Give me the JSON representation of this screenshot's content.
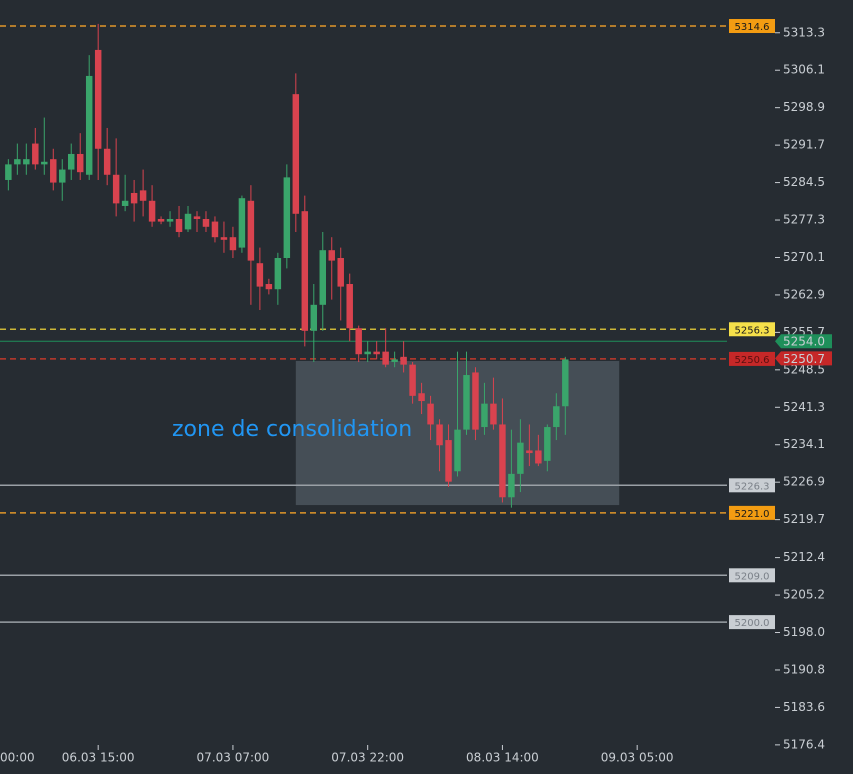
{
  "chart_data": {
    "type": "candlestick",
    "up_color": "#3aa56b",
    "down_color": "#d9434f",
    "xlim": [
      4.07,
      85
    ],
    "ylim": [
      5170.8,
      5319.6
    ],
    "xticks": [
      {
        "value": 0,
        "label": "00:00"
      },
      {
        "value": 15,
        "label": "06.03 15:00"
      },
      {
        "value": 30,
        "label": "07.03 07:00"
      },
      {
        "value": 45,
        "label": "07.03 22:00"
      },
      {
        "value": 60,
        "label": "08.03 14:00"
      },
      {
        "value": 75,
        "label": "09.03 05:00"
      }
    ],
    "yticks": [
      5313.3,
      5306.1,
      5298.9,
      5291.7,
      5284.5,
      5277.3,
      5270.1,
      5262.9,
      5255.7,
      5248.5,
      5241.3,
      5234.1,
      5226.9,
      5219.7,
      5212.4,
      5205.2,
      {
        "value": 5198,
        "label": "5198.0"
      },
      5190.8,
      5183.6,
      5176.4
    ],
    "x": [
      5,
      6,
      7,
      8,
      9,
      10,
      11,
      12,
      13,
      14,
      15,
      16,
      17,
      18,
      19,
      20,
      21,
      22,
      23,
      24,
      25,
      26,
      27,
      28,
      29,
      30,
      31,
      32,
      33,
      34,
      35,
      36,
      37,
      38,
      39,
      40,
      41,
      42,
      43,
      44,
      45,
      46,
      47,
      48,
      49,
      50,
      51,
      52,
      53,
      54,
      55,
      56,
      57,
      58,
      59,
      60,
      61,
      62,
      63,
      64,
      65,
      66,
      67
    ],
    "open": [
      5285,
      5288,
      5288,
      5292,
      5288,
      5289,
      5284.5,
      5287,
      5290,
      5286,
      5310,
      5291,
      5286,
      5280,
      5282.5,
      5283,
      5281,
      5277.5,
      5277,
      5277.5,
      5275.5,
      5278,
      5277.5,
      5277,
      5274,
      5274,
      5272,
      5281,
      5269,
      5265,
      5264,
      5270,
      5301.5,
      5279,
      5256,
      5261,
      5271.5,
      5270,
      5265,
      5256.5,
      5251.5,
      5252,
      5252,
      5250,
      5251,
      5249.5,
      5244,
      5242,
      5238,
      5235,
      5229,
      5237,
      5248,
      5237.5,
      5242,
      5238,
      5224,
      5228.5,
      5233,
      5233,
      5231,
      5237.5,
      5241.5
    ],
    "high": [
      5289,
      5292,
      5292,
      5295,
      5297,
      5291,
      5289,
      5292,
      5294,
      5309,
      5315,
      5295,
      5293,
      5286,
      5285,
      5287,
      5284,
      5278,
      5279,
      5280,
      5280,
      5279,
      5279,
      5278,
      5277,
      5276,
      5282,
      5284,
      5272,
      5266,
      5271,
      5288,
      5305.5,
      5282,
      5265,
      5275,
      5274,
      5272,
      5267,
      5257,
      5254,
      5254,
      5256.5,
      5252,
      5254,
      5250,
      5246,
      5243.5,
      5239,
      5238,
      5252,
      5252,
      5249,
      5246,
      5247,
      5243,
      5237,
      5239,
      5238,
      5236,
      5238,
      5244,
      5251
    ],
    "low": [
      5283,
      5286,
      5286,
      5287,
      5286,
      5283,
      5281,
      5285,
      5285,
      5285,
      5285,
      5284,
      5278,
      5279,
      5277,
      5278,
      5276,
      5276.5,
      5276,
      5274,
      5275,
      5275,
      5275,
      5273,
      5271,
      5270,
      5271,
      5261,
      5260,
      5263,
      5261,
      5268,
      5275,
      5253,
      5250,
      5256,
      5262,
      5258,
      5254,
      5250,
      5250,
      5250.5,
      5249,
      5249,
      5248,
      5242,
      5240,
      5235,
      5229,
      5226,
      5228,
      5236,
      5235,
      5236,
      5237,
      5223,
      5222,
      5225,
      5230,
      5230,
      5229,
      5235,
      5236
    ],
    "close": [
      5288,
      5289,
      5289,
      5288,
      5288.5,
      5284.5,
      5287,
      5290,
      5286.5,
      5305,
      5291,
      5286,
      5280.5,
      5281,
      5280.5,
      5281,
      5277,
      5277,
      5277.5,
      5275,
      5278.5,
      5277.5,
      5276,
      5274,
      5273.5,
      5271.5,
      5281.5,
      5269.5,
      5264.5,
      5264,
      5270,
      5285.5,
      5278.5,
      5256,
      5261,
      5271.5,
      5269.5,
      5264.5,
      5256.5,
      5251.5,
      5252,
      5251.5,
      5249.5,
      5250.5,
      5249.5,
      5243.5,
      5242.5,
      5238,
      5234,
      5227,
      5237,
      5247.5,
      5237,
      5242,
      5238,
      5224,
      5228.5,
      5234.5,
      5232.5,
      5230.5,
      5237.5,
      5241.5,
      5250.5
    ],
    "levels": [
      {
        "value": 5314.6,
        "style": "dashed",
        "color": "#e0962a",
        "box": "#f39c12",
        "text": "#1a1a1a"
      },
      {
        "value": 5256.3,
        "style": "dashed",
        "color": "#cdb838",
        "box": "#f5e04a",
        "text": "#1a1a1a"
      },
      {
        "value": 5250.6,
        "style": "dashed",
        "color": "#c0392b",
        "box": "#c62828",
        "text": "#5a1010"
      },
      {
        "value": 5226.3,
        "style": "solid",
        "color": "#9aa0a6",
        "box": "#c9ced3",
        "text": "#7a8088"
      },
      {
        "value": 5221,
        "label": "5221.0",
        "style": "dashed",
        "color": "#e0962a",
        "box": "#f39c12",
        "text": "#1a1a1a"
      },
      {
        "value": 5209,
        "label": "5209.0",
        "style": "solid",
        "color": "#9aa0a6",
        "box": "#c9ced3",
        "text": "#7a8088"
      },
      {
        "value": 5200,
        "label": "5200.0",
        "style": "solid",
        "color": "#9aa0a6",
        "box": "#c9ced3",
        "text": "#7a8088"
      }
    ],
    "markers": [
      {
        "value": 5254,
        "label": "5254.0",
        "color": "#1e8f5a",
        "line": true
      },
      {
        "value": 5250.7,
        "color": "#c62828",
        "line": false
      }
    ],
    "zone": {
      "label": "zone de consolidation",
      "x": [
        37,
        73
      ],
      "y": [
        5222.5,
        5250.2
      ],
      "fill": "rgba(150,170,180,0.28)",
      "text_color": "#2196f3"
    }
  }
}
